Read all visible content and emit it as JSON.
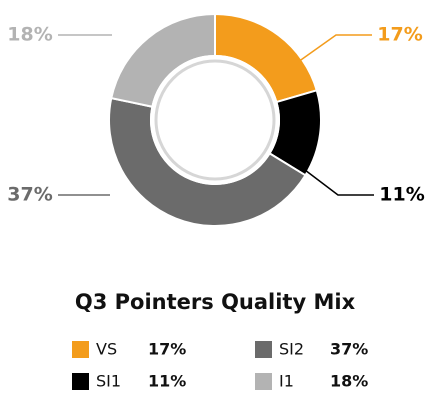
{
  "chart_data": {
    "type": "donut",
    "title": "Q3 Pointers Quality Mix",
    "categories": [
      "VS",
      "SI1",
      "SI2",
      "I1"
    ],
    "values": [
      17,
      11,
      37,
      18
    ],
    "value_labels": [
      "17%",
      "11%",
      "37%",
      "18%"
    ],
    "colors": [
      "#f39c1c",
      "#000000",
      "#6b6b6b",
      "#b3b3b3"
    ]
  }
}
